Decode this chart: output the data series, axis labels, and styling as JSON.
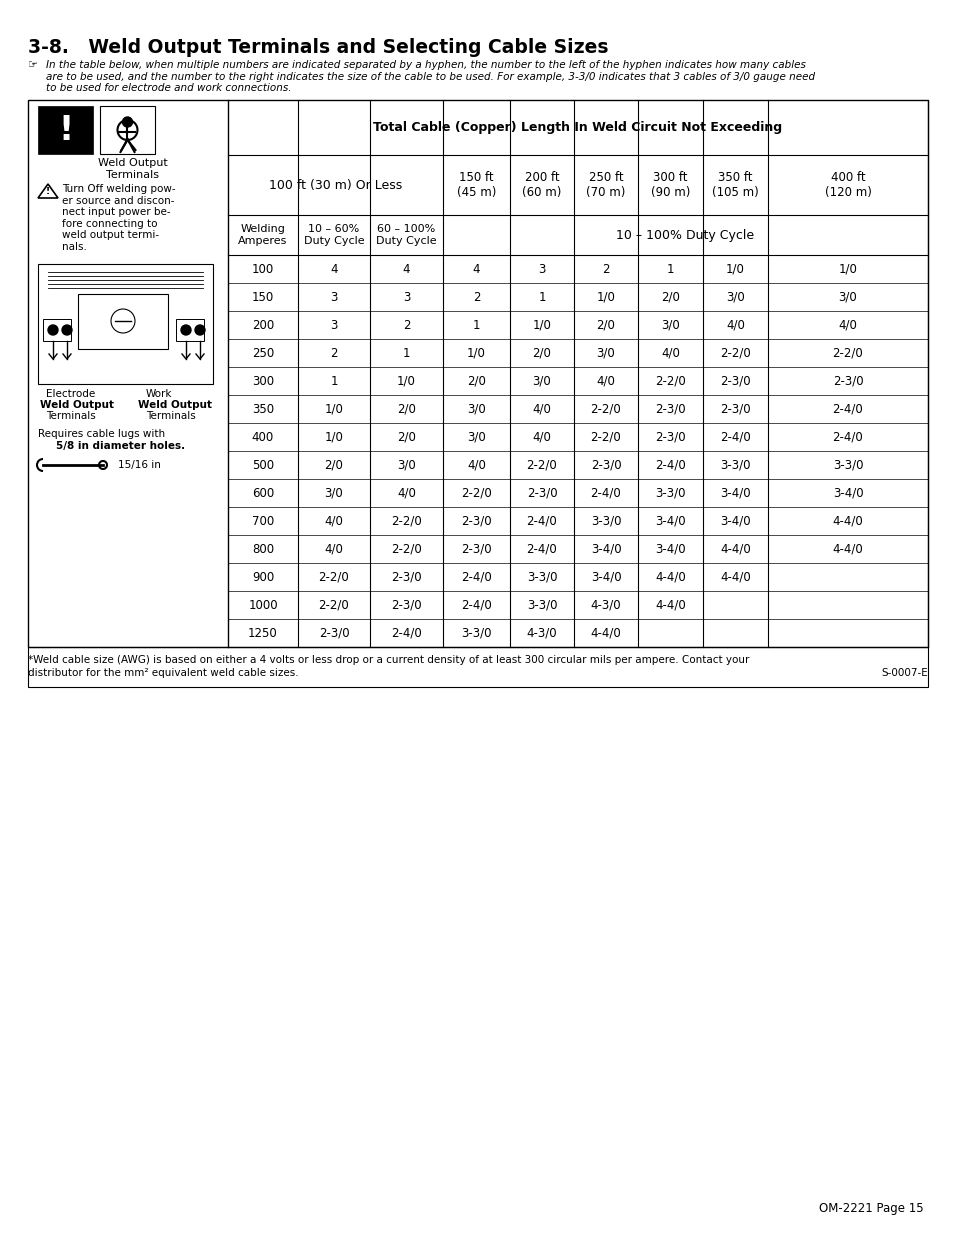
{
  "title": "3-8.   Weld Output Terminals and Selecting Cable Sizes",
  "note_text_lines": [
    "In the table below, when multiple numbers are indicated separated by a hyphen, the number to the left of the hyphen indicates how many cables",
    "are to be used, and the number to the right indicates the size of the cable to be used. For example, 3-3/0 indicates that 3 cables of 3/0 gauge need",
    "to be used for electrode and work connections."
  ],
  "table_header_main": "Total Cable (Copper) Length In Weld Circuit Not Exceeding",
  "col100ft": "100 ft (30 m) Or Less",
  "dist_labels": [
    "150 ft\n(45 m)",
    "200 ft\n(60 m)",
    "250 ft\n(70 m)",
    "300 ft\n(90 m)",
    "350 ft\n(105 m)",
    "400 ft\n(120 m)"
  ],
  "subhdr0": "Welding\nAmperes",
  "subhdr1": "10 – 60%\nDuty Cycle",
  "subhdr2": "60 – 100%\nDuty Cycle",
  "duty_cycle_label": "10 – 100% Duty Cycle",
  "rows": [
    [
      "100",
      "4",
      "4",
      "4",
      "3",
      "2",
      "1",
      "1/0",
      "1/0"
    ],
    [
      "150",
      "3",
      "3",
      "2",
      "1",
      "1/0",
      "2/0",
      "3/0",
      "3/0"
    ],
    [
      "200",
      "3",
      "2",
      "1",
      "1/0",
      "2/0",
      "3/0",
      "4/0",
      "4/0"
    ],
    [
      "250",
      "2",
      "1",
      "1/0",
      "2/0",
      "3/0",
      "4/0",
      "2-2/0",
      "2-2/0"
    ],
    [
      "300",
      "1",
      "1/0",
      "2/0",
      "3/0",
      "4/0",
      "2-2/0",
      "2-3/0",
      "2-3/0"
    ],
    [
      "350",
      "1/0",
      "2/0",
      "3/0",
      "4/0",
      "2-2/0",
      "2-3/0",
      "2-3/0",
      "2-4/0"
    ],
    [
      "400",
      "1/0",
      "2/0",
      "3/0",
      "4/0",
      "2-2/0",
      "2-3/0",
      "2-4/0",
      "2-4/0"
    ],
    [
      "500",
      "2/0",
      "3/0",
      "4/0",
      "2-2/0",
      "2-3/0",
      "2-4/0",
      "3-3/0",
      "3-3/0"
    ],
    [
      "600",
      "3/0",
      "4/0",
      "2-2/0",
      "2-3/0",
      "2-4/0",
      "3-3/0",
      "3-4/0",
      "3-4/0"
    ],
    [
      "700",
      "4/0",
      "2-2/0",
      "2-3/0",
      "2-4/0",
      "3-3/0",
      "3-4/0",
      "3-4/0",
      "4-4/0"
    ],
    [
      "800",
      "4/0",
      "2-2/0",
      "2-3/0",
      "2-4/0",
      "3-4/0",
      "3-4/0",
      "4-4/0",
      "4-4/0"
    ],
    [
      "900",
      "2-2/0",
      "2-3/0",
      "2-4/0",
      "3-3/0",
      "3-4/0",
      "4-4/0",
      "4-4/0",
      ""
    ],
    [
      "1000",
      "2-2/0",
      "2-3/0",
      "2-4/0",
      "3-3/0",
      "4-3/0",
      "4-4/0",
      "",
      ""
    ],
    [
      "1250",
      "2-3/0",
      "2-4/0",
      "3-3/0",
      "4-3/0",
      "4-4/0",
      "",
      "",
      ""
    ]
  ],
  "footnote_line1": "*Weld cable size (AWG) is based on either a 4 volts or less drop or a current density of at least 300 circular mils per ampere. Contact your",
  "footnote_line2": "distributor for the mm² equivalent weld cable sizes.",
  "footnote_code": "S-0007-E",
  "weld_output_terminals": "Weld Output\nTerminals",
  "warning_text_lines": [
    "Turn Off welding pow-",
    "er source and discon-",
    "nect input power be-",
    "fore connecting to",
    "weld output termi-",
    "nals."
  ],
  "electrode_label": "Electrode",
  "work_label": "Work",
  "weld_output_label": "Weld Output",
  "terminals_label": "Terminals",
  "cable_lugs_line1": "Requires cable lugs with",
  "cable_lugs_line2": "5/8 in diameter holes.",
  "wrench_label": "15/16 in",
  "page_footer": "OM-2221 Page 15"
}
